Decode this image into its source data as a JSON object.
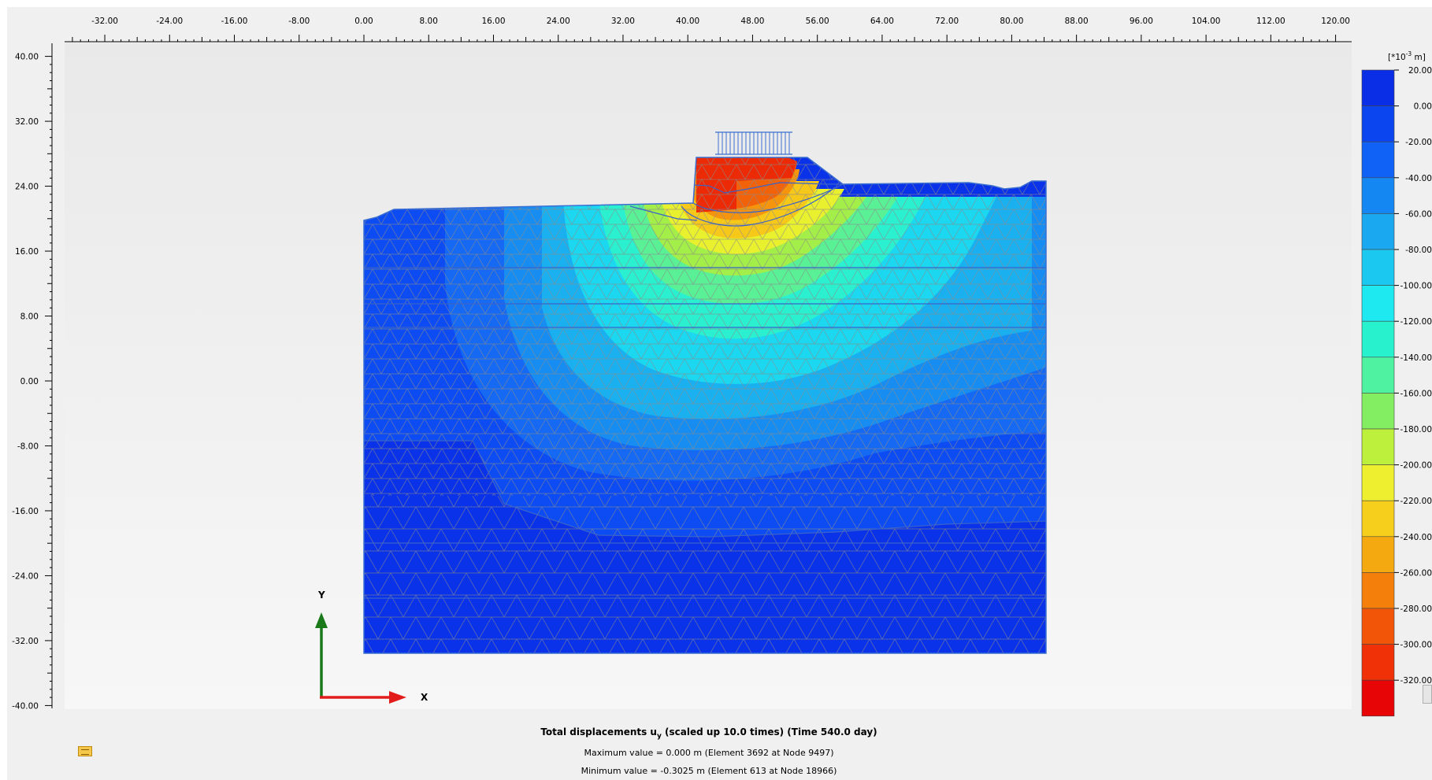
{
  "x_axis": {
    "ticks": [
      "-32.00",
      "-24.00",
      "-16.00",
      "-8.00",
      "0.00",
      "8.00",
      "16.00",
      "24.00",
      "32.00",
      "40.00",
      "48.00",
      "56.00",
      "64.00",
      "72.00",
      "80.00",
      "88.00",
      "96.00",
      "104.00",
      "112.00",
      "120.00"
    ]
  },
  "y_axis": {
    "ticks": [
      "40.00",
      "32.00",
      "24.00",
      "16.00",
      "8.00",
      "0.00",
      "-8.00",
      "-16.00",
      "-24.00",
      "-32.00",
      "-40.00"
    ]
  },
  "axes_gizmo": {
    "y_label": "Y",
    "x_label": "X",
    "y_color": "#1a7a1a",
    "x_color": "#e21b1b"
  },
  "legend": {
    "unit_prefix": "[*10",
    "unit_exp": "-3",
    "unit_suffix": " m]",
    "labels": [
      "20.00",
      "0.00",
      "-20.00",
      "-40.00",
      "-60.00",
      "-80.00",
      "-100.00",
      "-120.00",
      "-140.00",
      "-160.00",
      "-180.00",
      "-200.00",
      "-220.00",
      "-240.00",
      "-260.00",
      "-280.00",
      "-300.00",
      "-320.00"
    ],
    "colors": [
      "#0a2ee6",
      "#0b45f0",
      "#0f62f5",
      "#1587f2",
      "#1aa9f0",
      "#1ac8f0",
      "#1ee8f0",
      "#27f2cd",
      "#4ff2a0",
      "#84ee63",
      "#bdf03c",
      "#eef02f",
      "#f6cf1c",
      "#f5a910",
      "#f4800b",
      "#f25508",
      "#f03006",
      "#e80505"
    ]
  },
  "caption": {
    "title_main": "Total displacements u",
    "title_sub": "y",
    "title_rest": " (scaled up 10.0 times) (Time 540.0 day)",
    "max_text": "Maximum value = 0.000 m (Element 3692 at Node 9497)",
    "min_text": "Minimum value = -0.3025 m (Element 613 at Node 18966)"
  },
  "chart_data": {
    "type": "heatmap",
    "x_ticks": [
      -32,
      -24,
      -16,
      -8,
      0,
      8,
      16,
      24,
      32,
      40,
      48,
      56,
      64,
      72,
      80,
      88,
      96,
      104,
      112,
      120
    ],
    "y_ticks": [
      40,
      32,
      24,
      16,
      8,
      0,
      -8,
      -16,
      -24,
      -32,
      -40
    ],
    "xlim": [
      -37,
      121
    ],
    "ylim": [
      -41,
      41
    ],
    "value_unit": "[*10^-3 m]",
    "color_scale_min": -320,
    "color_scale_max": 20,
    "max_value_m": 0.0,
    "min_value_m": -0.3025
  }
}
